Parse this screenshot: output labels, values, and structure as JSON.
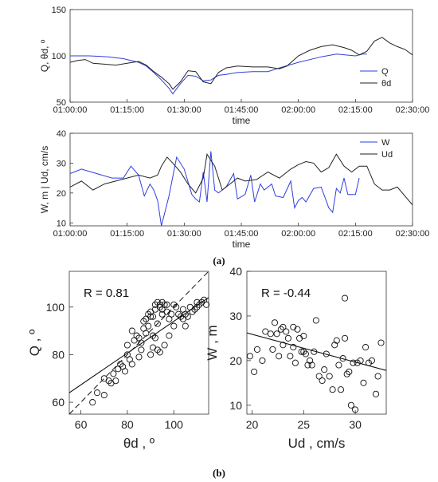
{
  "captions": {
    "a": "(a)",
    "b": "(b)"
  },
  "chart_data": [
    {
      "type": "line",
      "xlabel": "time",
      "ylabel": "Q, θd, º",
      "xlim": [
        "01:00:00",
        "02:30:00"
      ],
      "xticks": [
        "01:00:00",
        "01:15:00",
        "01:30:00",
        "01:45:00",
        "02:00:00",
        "02:15:00",
        "02:30:00"
      ],
      "ylim": [
        50,
        150
      ],
      "yticks": [
        "50",
        "100",
        "150"
      ],
      "legend": "right",
      "series": [
        {
          "name": "Q",
          "color": "#2f3ee0",
          "x": [
            "01:00:00",
            "01:05:00",
            "01:10:00",
            "01:14:00",
            "01:18:00",
            "01:20:00",
            "01:22:00",
            "01:24:00",
            "01:26:00",
            "01:27:00",
            "01:29:00",
            "01:31:00",
            "01:33:00",
            "01:35:00",
            "01:37:00",
            "01:39:00",
            "01:41:00",
            "01:44:00",
            "01:48:00",
            "01:52:00",
            "01:55:00",
            "02:00:00",
            "02:06:00",
            "02:10:00",
            "02:15:00",
            "02:17:00",
            "02:18:00"
          ],
          "y": [
            100,
            100,
            99,
            97,
            93,
            89,
            82,
            74,
            65,
            59,
            70,
            79,
            78,
            73,
            74,
            79,
            80,
            82,
            83,
            83,
            87,
            93,
            99,
            102,
            100,
            102,
            102
          ]
        },
        {
          "name": "θd",
          "color": "#222222",
          "x": [
            "01:00:00",
            "01:02:00",
            "01:04:00",
            "01:06:00",
            "01:09:00",
            "01:12:00",
            "01:15:00",
            "01:18:00",
            "01:20:00",
            "01:22:00",
            "01:24:00",
            "01:26:00",
            "01:27:00",
            "01:29:00",
            "01:31:00",
            "01:33:00",
            "01:35:00",
            "01:37:00",
            "01:39:00",
            "01:41:00",
            "01:44:00",
            "01:48:00",
            "01:52:00",
            "01:55:00",
            "01:57:00",
            "02:00:00",
            "02:03:00",
            "02:06:00",
            "02:09:00",
            "02:12:00",
            "02:14:00",
            "02:16:00",
            "02:18:00",
            "02:20:00",
            "02:22:00",
            "02:24:00",
            "02:26:00",
            "02:28:00",
            "02:30:00"
          ],
          "y": [
            93,
            95,
            96,
            92,
            91,
            90,
            92,
            94,
            90,
            83,
            77,
            70,
            64,
            72,
            84,
            83,
            72,
            70,
            82,
            87,
            89,
            88,
            88,
            86,
            89,
            100,
            106,
            110,
            112,
            109,
            106,
            101,
            105,
            116,
            120,
            114,
            110,
            107,
            101
          ]
        }
      ]
    },
    {
      "type": "line",
      "xlabel": "time",
      "ylabel": "W, m | Ud, cm/s",
      "xlim": [
        "01:00:00",
        "02:30:00"
      ],
      "xticks": [
        "01:00:00",
        "01:15:00",
        "01:30:00",
        "01:45:00",
        "02:00:00",
        "02:15:00",
        "02:30:00"
      ],
      "ylim": [
        9,
        40
      ],
      "yticks": [
        "10",
        "20",
        "30",
        "40"
      ],
      "legend": "top-right",
      "series": [
        {
          "name": "W",
          "color": "#2f3ee0",
          "x": [
            "01:00:00",
            "01:03:00",
            "01:07:00",
            "01:11:00",
            "01:14:00",
            "01:16:00",
            "01:18:00",
            "01:19:30",
            "01:21:00",
            "01:22:00",
            "01:23:00",
            "01:24:00",
            "01:26:00",
            "01:28:00",
            "01:30:00",
            "01:32:00",
            "01:33:00",
            "01:34:00",
            "01:35:00",
            "01:36:00",
            "01:37:00",
            "01:38:00",
            "01:39:00",
            "01:41:00",
            "01:43:00",
            "01:44:00",
            "01:46:00",
            "01:47:30",
            "01:48:30",
            "01:50:00",
            "01:51:00",
            "01:53:00",
            "01:54:00",
            "01:56:00",
            "01:58:00",
            "01:59:00",
            "02:00:00",
            "02:01:00",
            "02:02:00",
            "02:04:00",
            "02:06:00",
            "02:08:00",
            "02:09:00",
            "02:10:00",
            "02:11:00",
            "02:12:00",
            "02:13:00",
            "02:15:00",
            "02:16:00"
          ],
          "y": [
            26.5,
            28,
            26.5,
            25,
            25,
            29,
            26,
            19,
            23,
            21,
            17.5,
            9,
            19,
            32,
            28,
            19.5,
            18,
            17,
            27,
            17,
            34,
            21,
            20,
            22,
            26.5,
            18,
            19.5,
            26,
            17,
            23,
            21,
            23,
            19,
            18.5,
            24,
            15,
            17.5,
            18.5,
            17,
            21.5,
            22,
            15,
            13.5,
            21.5,
            20,
            25,
            19.5,
            19.5,
            25
          ]
        },
        {
          "name": "Ud",
          "color": "#222222",
          "x": [
            "01:00:00",
            "01:03:00",
            "01:06:00",
            "01:09:00",
            "01:12:00",
            "01:15:00",
            "01:18:00",
            "01:21:00",
            "01:23:00",
            "01:24:00",
            "01:25:30",
            "01:27:00",
            "01:29:00",
            "01:31:00",
            "01:33:00",
            "01:35:00",
            "01:36:00",
            "01:38:00",
            "01:40:00",
            "01:42:00",
            "01:44:00",
            "01:46:00",
            "01:49:00",
            "01:52:00",
            "01:55:00",
            "01:58:00",
            "02:00:00",
            "02:02:00",
            "02:04:00",
            "02:06:00",
            "02:08:00",
            "02:10:00",
            "02:12:00",
            "02:14:00",
            "02:16:00",
            "02:18:00",
            "02:20:00",
            "02:22:00",
            "02:24:00",
            "02:26:00",
            "02:28:00",
            "02:30:00"
          ],
          "y": [
            22,
            24,
            21,
            23,
            24,
            25,
            26,
            25,
            26,
            29,
            32,
            30,
            27,
            23,
            20,
            25,
            33,
            29,
            21,
            23,
            25,
            24,
            24.5,
            27,
            25,
            28,
            29.5,
            30.5,
            30,
            27,
            28.5,
            33,
            29,
            27,
            29,
            29,
            23,
            21,
            21,
            22,
            19,
            16
          ]
        }
      ]
    },
    {
      "type": "scatter",
      "xlabel": "θd , º",
      "ylabel": "Q , º",
      "xlim": [
        55,
        115
      ],
      "ylim": [
        55,
        115
      ],
      "xticks": [
        "60",
        "80",
        "100"
      ],
      "yticks": [
        "60",
        "80",
        "100"
      ],
      "annotation": "R = 0.81",
      "fit_line": {
        "x": [
          55,
          115
        ],
        "y": [
          64,
          104
        ]
      },
      "identity_line": {
        "x": [
          55,
          115
        ],
        "y": [
          55,
          115
        ]
      },
      "x": [
        65,
        67,
        70,
        70,
        72,
        73,
        74,
        75,
        76,
        77,
        78,
        79,
        80,
        80,
        81,
        82,
        82,
        83,
        84,
        85,
        85,
        86,
        86,
        87,
        87,
        88,
        88,
        89,
        89,
        90,
        90,
        90,
        91,
        91,
        91,
        92,
        92,
        92,
        93,
        93,
        93,
        94,
        94,
        94,
        95,
        95,
        95,
        96,
        96,
        97,
        97,
        98,
        98,
        99,
        100,
        100,
        101,
        102,
        103,
        104,
        104,
        105,
        105,
        106,
        107,
        108,
        109,
        110,
        110,
        111,
        112,
        113,
        114
      ],
      "y": [
        60,
        64,
        63,
        70,
        69,
        68,
        72,
        69,
        74,
        76,
        75,
        73,
        80,
        84,
        78,
        76,
        90,
        86,
        88,
        79,
        87,
        82,
        85,
        91,
        94,
        89,
        95,
        92,
        97,
        96,
        98,
        80,
        83,
        88,
        96,
        87,
        99,
        101,
        82,
        93,
        102,
        81,
        100,
        101,
        99,
        97,
        102,
        84,
        101,
        101,
        98,
        88,
        95,
        97,
        92,
        101,
        100,
        97,
        96,
        95,
        99,
        92,
        97,
        96,
        100,
        98,
        99,
        102,
        100,
        101,
        102,
        103,
        101
      ]
    },
    {
      "type": "scatter",
      "xlabel": "Ud , cm/s",
      "ylabel": "W , m",
      "xlim": [
        19.5,
        33
      ],
      "ylim": [
        8,
        40
      ],
      "xticks": [
        "20",
        "25",
        "30"
      ],
      "yticks": [
        "10",
        "20",
        "30",
        "40"
      ],
      "annotation": "R = -0.44",
      "fit_line": {
        "x": [
          19.5,
          33
        ],
        "y": [
          26.2,
          17.8
        ]
      },
      "x": [
        19.8,
        20.2,
        20.5,
        21,
        21.3,
        21.8,
        22,
        22.2,
        22.4,
        22.6,
        22.8,
        23,
        23,
        23.3,
        23.5,
        23.7,
        24,
        24,
        24.2,
        24.4,
        24.6,
        24.8,
        25,
        25,
        25.2,
        25.4,
        25.6,
        25.8,
        26,
        26.2,
        26.5,
        26.8,
        27,
        27.2,
        27.5,
        27.8,
        28,
        28.2,
        28.4,
        28.6,
        28.8,
        29,
        29,
        29.2,
        29.4,
        29.6,
        29.8,
        30,
        30.2,
        30.5,
        30.8,
        31,
        31.3,
        31.6,
        32,
        32.2,
        32.5
      ],
      "y": [
        21,
        17.5,
        22.5,
        20,
        26.5,
        26,
        22.5,
        28.5,
        26,
        21,
        27,
        27.5,
        23.5,
        26.5,
        25,
        21,
        27.5,
        23,
        19.5,
        27,
        25,
        22,
        25.5,
        22,
        21.5,
        19,
        20,
        19,
        22,
        29,
        16.5,
        15.5,
        18,
        21.5,
        16.5,
        13.5,
        23.5,
        24.5,
        19,
        13.5,
        20.5,
        34,
        25,
        17,
        17.5,
        10,
        19.5,
        9,
        19.5,
        20,
        15,
        23,
        19.5,
        20,
        12.5,
        16.5,
        24
      ]
    }
  ]
}
